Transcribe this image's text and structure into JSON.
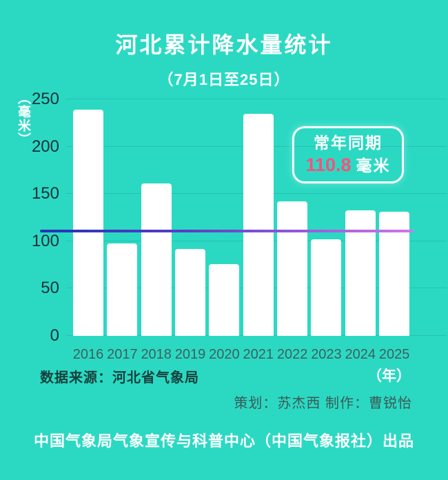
{
  "page": {
    "title": "河北累计降水量统计",
    "subtitle": "（7月1日至25日）",
    "source": "数据来源：河北省气象局",
    "credits": "策划：苏杰西 制作：曹锐怡",
    "footer": "中国气象局气象宣传与科普中心（中国气象报社）出品"
  },
  "annotation": {
    "line1": "常年同期",
    "value": "110.8",
    "unit": "毫米"
  },
  "colors": {
    "background": "#2BD9C3",
    "bar": "#FFFFFF",
    "annotation_value": "#F8517D",
    "reference_line_start": "#2533B3",
    "reference_line_end": "#CE78EB",
    "axis_label": "#13313A",
    "year_label": "#3F5F5C"
  },
  "chart_data": {
    "type": "bar",
    "title": "河北累计降水量统计（7月1日至25日）",
    "categories": [
      "2016",
      "2017",
      "2018",
      "2019",
      "2020",
      "2021",
      "2022",
      "2023",
      "2024",
      "2025"
    ],
    "values": [
      239,
      98,
      161,
      92,
      76,
      235,
      142,
      102,
      133,
      131
    ],
    "reference_line": 110.8,
    "reference_line_label": "常年同期 110.8 毫米",
    "xlabel": "（年）",
    "ylabel": "（毫米）",
    "ylim": [
      0,
      250
    ],
    "yticks": [
      0,
      50,
      100,
      150,
      200,
      250
    ],
    "grid": true,
    "legend": false
  }
}
